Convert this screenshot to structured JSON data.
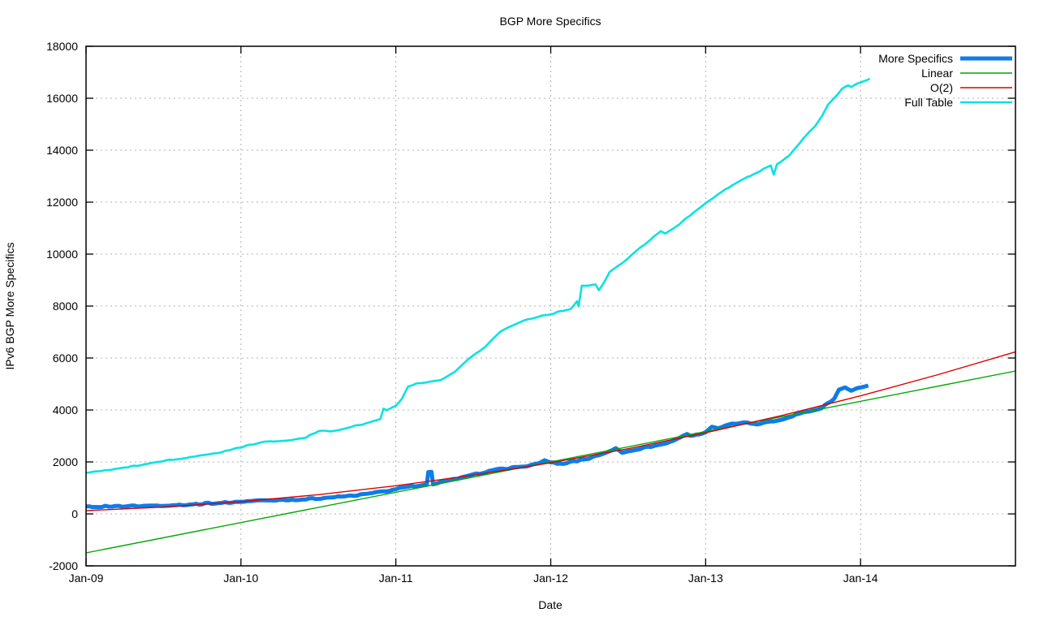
{
  "background": "#ffffff",
  "chart_data": {
    "type": "line",
    "title": "BGP More Specifics",
    "xlabel": "Date",
    "ylabel": "IPv6 BGP More Specifics",
    "x_unit": "years since Jan-2009",
    "xlim": [
      0,
      6
    ],
    "ylim": [
      -2000,
      18000
    ],
    "grid": true,
    "grid_color": "#b0b0b0",
    "border_color": "#000000",
    "legend_position": "top-right-inside",
    "xticks": [
      {
        "t": 0,
        "label": "Jan-09"
      },
      {
        "t": 1,
        "label": "Jan-10"
      },
      {
        "t": 2,
        "label": "Jan-11"
      },
      {
        "t": 3,
        "label": "Jan-12"
      },
      {
        "t": 4,
        "label": "Jan-13"
      },
      {
        "t": 5,
        "label": "Jan-14"
      }
    ],
    "yticks": [
      -2000,
      0,
      2000,
      4000,
      6000,
      8000,
      10000,
      12000,
      14000,
      16000,
      18000
    ],
    "series": [
      {
        "name": "More Specifics",
        "color": "#0d7ce8",
        "width": 5,
        "jitter": 25,
        "points": [
          [
            0.0,
            270
          ],
          [
            0.08,
            285
          ],
          [
            0.17,
            295
          ],
          [
            0.25,
            300
          ],
          [
            0.33,
            305
          ],
          [
            0.42,
            315
          ],
          [
            0.5,
            330
          ],
          [
            0.58,
            345
          ],
          [
            0.67,
            365
          ],
          [
            0.75,
            390
          ],
          [
            0.83,
            415
          ],
          [
            0.92,
            445
          ],
          [
            1.0,
            470
          ],
          [
            1.08,
            505
          ],
          [
            1.17,
            520
          ],
          [
            1.25,
            535
          ],
          [
            1.33,
            550
          ],
          [
            1.42,
            565
          ],
          [
            1.5,
            600
          ],
          [
            1.58,
            635
          ],
          [
            1.67,
            675
          ],
          [
            1.75,
            720
          ],
          [
            1.83,
            780
          ],
          [
            1.92,
            860
          ],
          [
            2.0,
            950
          ],
          [
            2.08,
            1040
          ],
          [
            2.17,
            1120
          ],
          [
            2.2,
            1130
          ],
          [
            2.21,
            1600
          ],
          [
            2.23,
            1610
          ],
          [
            2.24,
            1150
          ],
          [
            2.33,
            1270
          ],
          [
            2.42,
            1380
          ],
          [
            2.5,
            1500
          ],
          [
            2.58,
            1620
          ],
          [
            2.67,
            1720
          ],
          [
            2.75,
            1780
          ],
          [
            2.83,
            1830
          ],
          [
            2.92,
            1920
          ],
          [
            2.96,
            2060
          ],
          [
            3.0,
            2000
          ],
          [
            3.04,
            1930
          ],
          [
            3.08,
            1940
          ],
          [
            3.17,
            2040
          ],
          [
            3.25,
            2150
          ],
          [
            3.33,
            2300
          ],
          [
            3.42,
            2520
          ],
          [
            3.46,
            2350
          ],
          [
            3.5,
            2420
          ],
          [
            3.58,
            2520
          ],
          [
            3.67,
            2620
          ],
          [
            3.75,
            2720
          ],
          [
            3.83,
            2930
          ],
          [
            3.88,
            3060
          ],
          [
            3.92,
            3000
          ],
          [
            3.96,
            3080
          ],
          [
            4.0,
            3150
          ],
          [
            4.04,
            3360
          ],
          [
            4.08,
            3300
          ],
          [
            4.17,
            3460
          ],
          [
            4.25,
            3500
          ],
          [
            4.33,
            3460
          ],
          [
            4.42,
            3540
          ],
          [
            4.5,
            3650
          ],
          [
            4.58,
            3820
          ],
          [
            4.67,
            3950
          ],
          [
            4.71,
            4000
          ],
          [
            4.75,
            4100
          ],
          [
            4.79,
            4250
          ],
          [
            4.83,
            4460
          ],
          [
            4.86,
            4780
          ],
          [
            4.9,
            4870
          ],
          [
            4.94,
            4750
          ],
          [
            4.98,
            4850
          ],
          [
            5.02,
            4900
          ],
          [
            5.05,
            4940
          ]
        ]
      },
      {
        "name": "Linear",
        "color": "#00a800",
        "width": 1.4,
        "points": [
          [
            0,
            -1500
          ],
          [
            6,
            5500
          ]
        ]
      },
      {
        "name": "O(2)",
        "color": "#dd0000",
        "width": 1.4,
        "points": [
          [
            0,
            125
          ],
          [
            0.5,
            263
          ],
          [
            1,
            469
          ],
          [
            1.5,
            742
          ],
          [
            2,
            1083
          ],
          [
            2.5,
            1491
          ],
          [
            3,
            1967
          ],
          [
            3.5,
            2510
          ],
          [
            4,
            3121
          ],
          [
            4.5,
            3799
          ],
          [
            5,
            4545
          ],
          [
            5.5,
            5358
          ],
          [
            6,
            6239
          ]
        ]
      },
      {
        "name": "Full Table",
        "color": "#0ae2e2",
        "width": 2.6,
        "jitter": 18,
        "points": [
          [
            0.0,
            1590
          ],
          [
            0.08,
            1650
          ],
          [
            0.17,
            1720
          ],
          [
            0.25,
            1780
          ],
          [
            0.33,
            1860
          ],
          [
            0.42,
            1940
          ],
          [
            0.5,
            2030
          ],
          [
            0.58,
            2110
          ],
          [
            0.67,
            2190
          ],
          [
            0.75,
            2250
          ],
          [
            0.83,
            2330
          ],
          [
            0.92,
            2440
          ],
          [
            1.0,
            2560
          ],
          [
            1.04,
            2650
          ],
          [
            1.08,
            2660
          ],
          [
            1.13,
            2750
          ],
          [
            1.17,
            2780
          ],
          [
            1.25,
            2810
          ],
          [
            1.33,
            2860
          ],
          [
            1.42,
            2950
          ],
          [
            1.46,
            3060
          ],
          [
            1.5,
            3170
          ],
          [
            1.54,
            3210
          ],
          [
            1.58,
            3180
          ],
          [
            1.63,
            3230
          ],
          [
            1.67,
            3290
          ],
          [
            1.75,
            3400
          ],
          [
            1.83,
            3520
          ],
          [
            1.9,
            3650
          ],
          [
            1.92,
            4050
          ],
          [
            1.94,
            3980
          ],
          [
            2.0,
            4150
          ],
          [
            2.04,
            4450
          ],
          [
            2.08,
            4900
          ],
          [
            2.13,
            5000
          ],
          [
            2.21,
            5060
          ],
          [
            2.29,
            5150
          ],
          [
            2.38,
            5450
          ],
          [
            2.46,
            5900
          ],
          [
            2.5,
            6100
          ],
          [
            2.58,
            6450
          ],
          [
            2.67,
            7000
          ],
          [
            2.75,
            7250
          ],
          [
            2.83,
            7450
          ],
          [
            2.92,
            7600
          ],
          [
            3.0,
            7690
          ],
          [
            3.08,
            7820
          ],
          [
            3.13,
            7900
          ],
          [
            3.17,
            8200
          ],
          [
            3.18,
            8000
          ],
          [
            3.2,
            8780
          ],
          [
            3.25,
            8800
          ],
          [
            3.29,
            8820
          ],
          [
            3.31,
            8590
          ],
          [
            3.38,
            9300
          ],
          [
            3.46,
            9650
          ],
          [
            3.54,
            10050
          ],
          [
            3.58,
            10250
          ],
          [
            3.67,
            10700
          ],
          [
            3.71,
            10870
          ],
          [
            3.74,
            10780
          ],
          [
            3.83,
            11150
          ],
          [
            3.92,
            11600
          ],
          [
            4.0,
            11970
          ],
          [
            4.08,
            12300
          ],
          [
            4.17,
            12650
          ],
          [
            4.25,
            12900
          ],
          [
            4.33,
            13150
          ],
          [
            4.42,
            13400
          ],
          [
            4.44,
            13050
          ],
          [
            4.46,
            13450
          ],
          [
            4.54,
            13800
          ],
          [
            4.58,
            14100
          ],
          [
            4.63,
            14450
          ],
          [
            4.71,
            14950
          ],
          [
            4.75,
            15300
          ],
          [
            4.79,
            15750
          ],
          [
            4.83,
            16000
          ],
          [
            4.88,
            16350
          ],
          [
            4.92,
            16500
          ],
          [
            4.94,
            16430
          ],
          [
            4.98,
            16560
          ],
          [
            5.02,
            16650
          ],
          [
            5.06,
            16750
          ]
        ]
      }
    ]
  }
}
